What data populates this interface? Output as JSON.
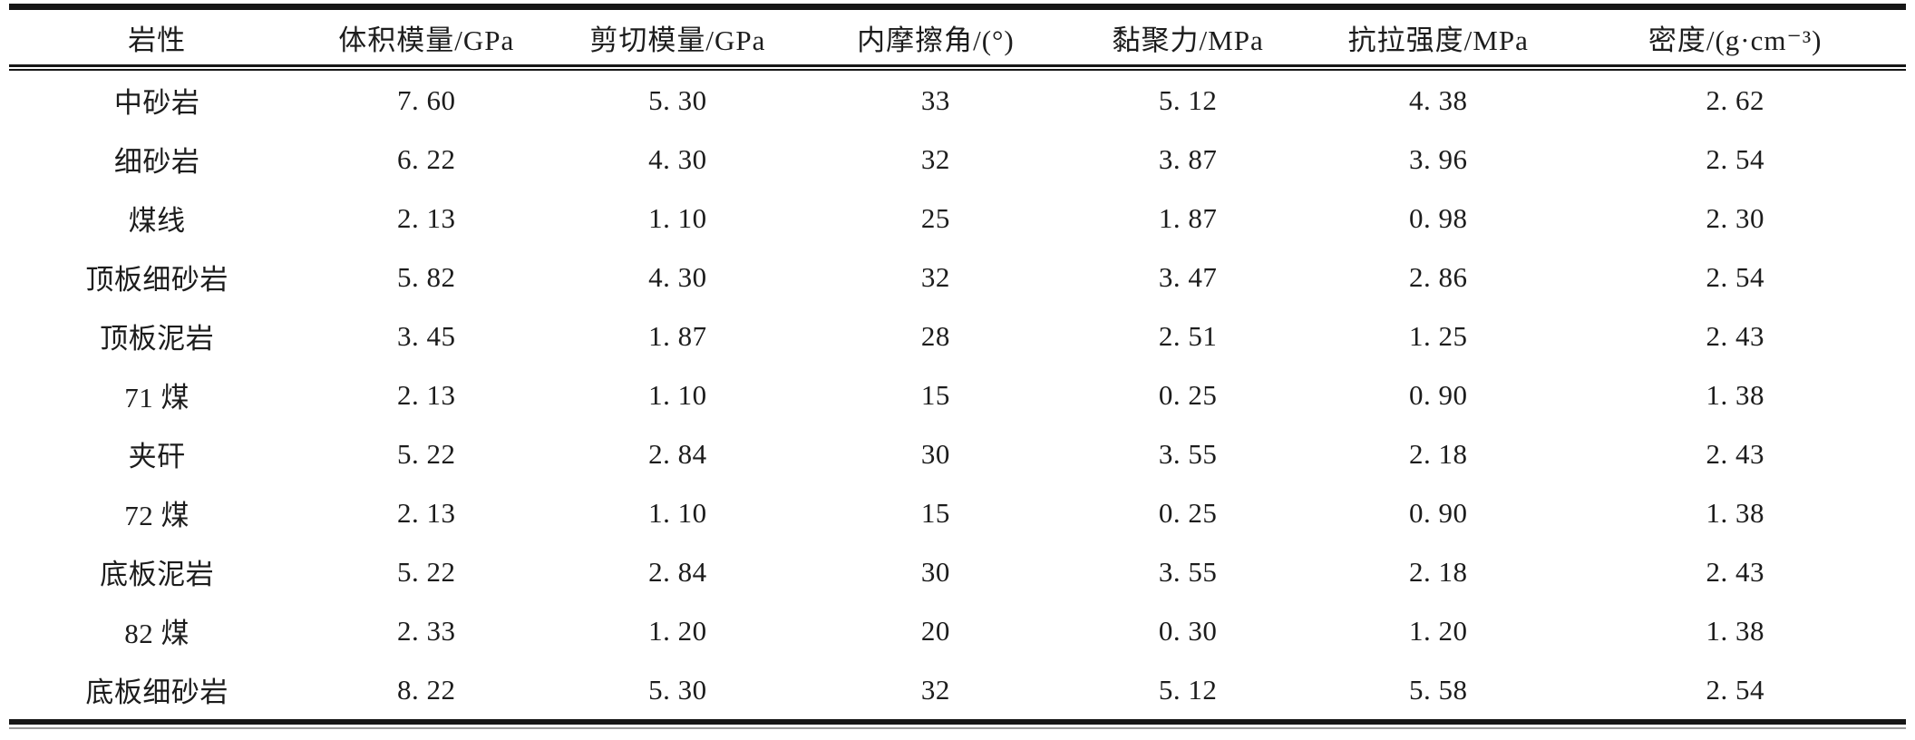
{
  "table": {
    "columns": [
      "岩性",
      "体积模量/GPa",
      "剪切模量/GPa",
      "内摩擦角/(°)",
      "黏聚力/MPa",
      "抗拉强度/MPa",
      "密度/(g·cm⁻³)"
    ],
    "rows": [
      [
        "中砂岩",
        "7. 60",
        "5. 30",
        "33",
        "5. 12",
        "4. 38",
        "2. 62"
      ],
      [
        "细砂岩",
        "6. 22",
        "4. 30",
        "32",
        "3. 87",
        "3. 96",
        "2. 54"
      ],
      [
        "煤线",
        "2. 13",
        "1. 10",
        "25",
        "1. 87",
        "0. 98",
        "2. 30"
      ],
      [
        "顶板细砂岩",
        "5. 82",
        "4. 30",
        "32",
        "3. 47",
        "2. 86",
        "2. 54"
      ],
      [
        "顶板泥岩",
        "3. 45",
        "1. 87",
        "28",
        "2. 51",
        "1. 25",
        "2. 43"
      ],
      [
        "71 煤",
        "2. 13",
        "1. 10",
        "15",
        "0. 25",
        "0. 90",
        "1. 38"
      ],
      [
        "夹矸",
        "5. 22",
        "2. 84",
        "30",
        "3. 55",
        "2. 18",
        "2. 43"
      ],
      [
        "72 煤",
        "2. 13",
        "1. 10",
        "15",
        "0. 25",
        "0. 90",
        "1. 38"
      ],
      [
        "底板泥岩",
        "5. 22",
        "2. 84",
        "30",
        "3. 55",
        "2. 18",
        "2. 43"
      ],
      [
        "82 煤",
        "2. 33",
        "1. 20",
        "20",
        "0. 30",
        "1. 20",
        "1. 38"
      ],
      [
        "底板细砂岩",
        "8. 22",
        "5. 30",
        "32",
        "5. 12",
        "5. 58",
        "2. 54"
      ]
    ],
    "colors": {
      "text": "#1c1c1c",
      "rule": "#161616",
      "faint_rule": "#9a9a9a",
      "background": "#ffffff"
    }
  }
}
